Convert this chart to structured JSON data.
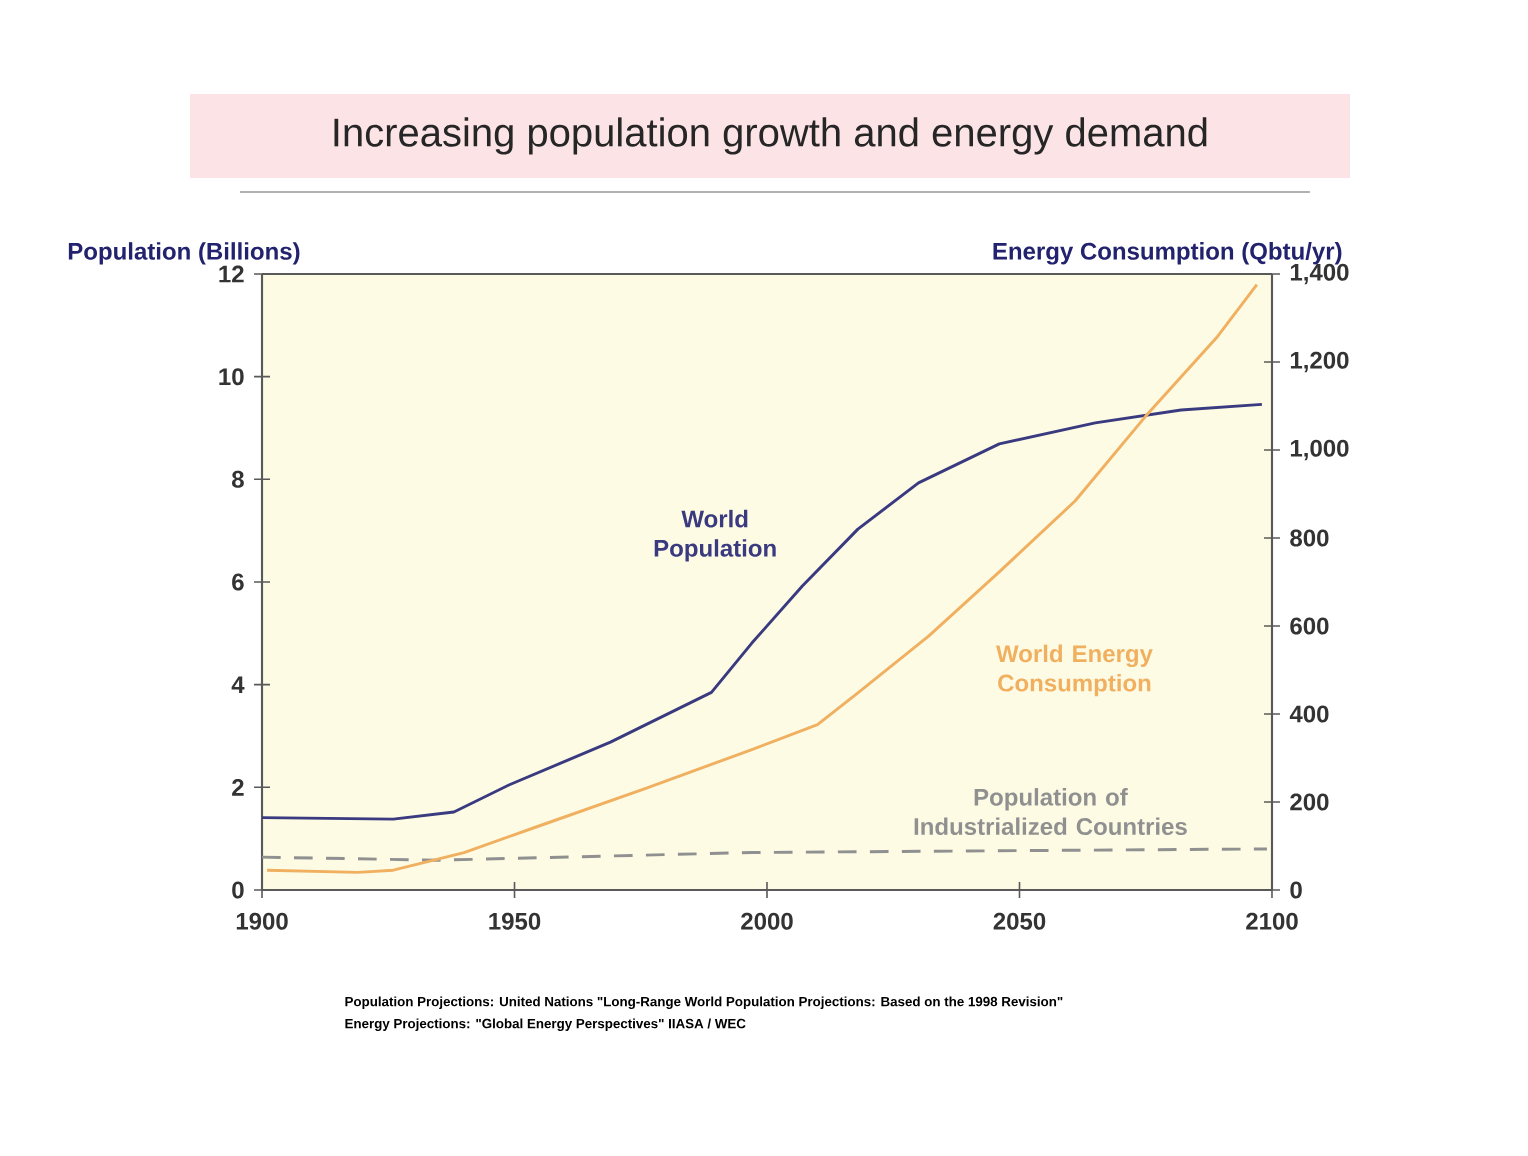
{
  "chart_data": {
    "type": "line",
    "title": "Increasing population growth and energy demand",
    "ylabel": "Population (Billions)",
    "y2label": "Energy Consumption (Qbtu/yr)",
    "xlim": [
      1900,
      2100
    ],
    "xticks": [
      1900,
      1950,
      2000,
      2050,
      2100
    ],
    "ylim": [
      0,
      12
    ],
    "yticks": [
      0,
      2,
      4,
      6,
      8,
      10,
      12
    ],
    "y2lim": [
      0,
      1400
    ],
    "y2ticks": [
      0,
      {
        "value": 200,
        "label": "200"
      },
      {
        "value": 400,
        "label": "400"
      },
      {
        "value": 600,
        "label": "600"
      },
      {
        "value": 800,
        "label": "800"
      },
      {
        "value": 1000,
        "label": "1,000"
      },
      {
        "value": 1200,
        "label": "1,200"
      },
      {
        "value": 1400,
        "label": "1,400"
      }
    ],
    "marker": "none",
    "grid": false,
    "series": [
      {
        "name": "World Population",
        "color": "#3a3a80",
        "line_style": "solid",
        "x": [
          1900,
          1926,
          1938,
          1949,
          1969,
          1989,
          1997,
          2007,
          2018,
          2030,
          2046,
          2065,
          2082,
          2098
        ],
        "values": [
          1.41,
          1.38,
          1.52,
          2.05,
          2.88,
          3.85,
          4.81,
          5.92,
          7.03,
          7.93,
          8.69,
          9.1,
          9.35,
          9.46
        ]
      },
      {
        "name": "World Energy Consumption",
        "color": "#f0b060",
        "line_style": "solid",
        "axis": "y2",
        "x": [
          1901,
          1919,
          1926,
          1940,
          1954,
          1976,
          1997,
          2010,
          2018,
          2032,
          2046,
          2061,
          2075,
          2089,
          2097
        ],
        "values": [
          45,
          40,
          45,
          85,
          142,
          231,
          319,
          376,
          448,
          577,
          723,
          884,
          1077,
          1255,
          1376
        ]
      },
      {
        "name": "Population of Industrialized Countries",
        "color": "#909090",
        "line_style": "dashed",
        "x": [
          1900,
          1935,
          1997,
          2099
        ],
        "values": [
          0.64,
          0.58,
          0.73,
          0.8
        ]
      }
    ],
    "annotations": [
      "Population Projections: United Nations \"Long-Range World Population Projections: Based on the 1998 Revision\"",
      "Energy Projections: \"Global Energy Perspectives\" IIASA / WEC"
    ]
  }
}
